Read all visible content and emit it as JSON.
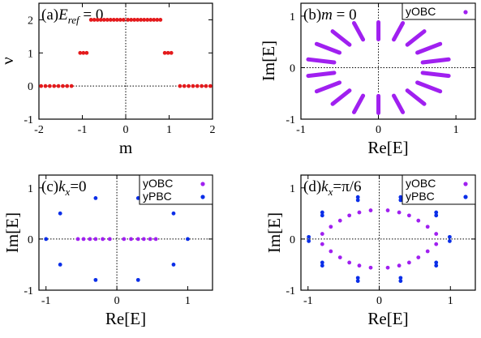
{
  "colors": {
    "red": "#e41a1c",
    "purple": "#a020f0",
    "blue": "#0a2ee8"
  },
  "chart_data": [
    {
      "panel": "(a)",
      "type": "scatter",
      "annotation": {
        "prefix": "(a)",
        "var": "E",
        "sub": "ref",
        "suffix": " = 0"
      },
      "xlabel": "m",
      "ylabel": "ν",
      "xlim": [
        -2,
        2
      ],
      "ylim": [
        -1,
        2.5
      ],
      "xticks": [
        -2,
        -1,
        0,
        1,
        2
      ],
      "yticks": [
        -1,
        0,
        1,
        2
      ],
      "series": [
        {
          "color": "red",
          "x": [
            -1.95,
            -1.85,
            -1.75,
            -1.65,
            -1.55,
            -1.45,
            -1.35,
            -1.25,
            -1.05,
            -0.975,
            -0.9,
            -0.8,
            -0.725,
            -0.65,
            -0.575,
            -0.5,
            -0.425,
            -0.35,
            -0.275,
            -0.2,
            -0.125,
            -0.05,
            0.05,
            0.125,
            0.2,
            0.275,
            0.35,
            0.425,
            0.5,
            0.575,
            0.65,
            0.725,
            0.8,
            0.9,
            0.975,
            1.05,
            1.25,
            1.35,
            1.45,
            1.55,
            1.65,
            1.75,
            1.85,
            1.95
          ],
          "y": [
            0,
            0,
            0,
            0,
            0,
            0,
            0,
            0,
            1,
            1,
            1,
            2,
            2,
            2,
            2,
            2,
            2,
            2,
            2,
            2,
            2,
            2,
            2,
            2,
            2,
            2,
            2,
            2,
            2,
            2,
            2,
            2,
            2,
            1,
            1,
            1,
            0,
            0,
            0,
            0,
            0,
            0,
            0,
            0
          ]
        }
      ]
    },
    {
      "panel": "(b)",
      "type": "scatter",
      "annotation": {
        "prefix": "(b)",
        "var": "m",
        "sub": "",
        "suffix": " = 0"
      },
      "xlabel": "Re[E]",
      "ylabel": "Im[E]",
      "xlim": [
        -1,
        1.25
      ],
      "ylim": [
        -1,
        1.25
      ],
      "xticks": [
        -1,
        0,
        1
      ],
      "yticks": [
        -1,
        0,
        1
      ],
      "legend": [
        "yOBC"
      ],
      "series": [
        {
          "name": "yOBC",
          "color": "purple",
          "style": "arcs",
          "arcs": [
            {
              "angle": 10,
              "r0": 0.58,
              "r1": 0.92
            },
            {
              "angle": 30,
              "r0": 0.58,
              "r1": 0.92
            },
            {
              "angle": 50,
              "r0": 0.58,
              "r1": 0.92
            },
            {
              "angle": 70,
              "r0": 0.58,
              "r1": 0.92
            },
            {
              "angle": 90,
              "r0": 0.55,
              "r1": 0.88
            },
            {
              "angle": 110,
              "r0": 0.58,
              "r1": 0.92
            },
            {
              "angle": 130,
              "r0": 0.58,
              "r1": 0.92
            },
            {
              "angle": 150,
              "r0": 0.58,
              "r1": 0.92
            },
            {
              "angle": 170,
              "r0": 0.58,
              "r1": 0.92
            },
            {
              "angle": 190,
              "r0": 0.58,
              "r1": 0.92
            },
            {
              "angle": 210,
              "r0": 0.58,
              "r1": 0.92
            },
            {
              "angle": 230,
              "r0": 0.58,
              "r1": 0.92
            },
            {
              "angle": 250,
              "r0": 0.58,
              "r1": 0.92
            },
            {
              "angle": 270,
              "r0": 0.55,
              "r1": 0.88
            },
            {
              "angle": 290,
              "r0": 0.58,
              "r1": 0.92
            },
            {
              "angle": 310,
              "r0": 0.58,
              "r1": 0.92
            },
            {
              "angle": 330,
              "r0": 0.58,
              "r1": 0.92
            },
            {
              "angle": 350,
              "r0": 0.58,
              "r1": 0.92
            }
          ]
        }
      ]
    },
    {
      "panel": "(c)",
      "type": "scatter",
      "annotation": {
        "prefix": "(c)",
        "var": "k",
        "sub": "x",
        "suffix": "=0"
      },
      "xlabel": "Re[E]",
      "ylabel": "Im[E]",
      "xlim": [
        -1.1,
        1.35
      ],
      "ylim": [
        -1,
        1.25
      ],
      "xticks": [
        -1,
        0,
        1
      ],
      "yticks": [
        -1,
        0,
        1
      ],
      "legend": [
        "yOBC",
        "yPBC"
      ],
      "series": [
        {
          "name": "yOBC",
          "color": "purple",
          "x": [
            -0.55,
            -0.47,
            -0.38,
            -0.3,
            -0.2,
            -0.1,
            0.1,
            0.2,
            0.3,
            0.38,
            0.47,
            0.55
          ],
          "y": [
            0,
            0,
            0,
            0,
            0,
            0,
            0,
            0,
            0,
            0,
            0,
            0
          ]
        },
        {
          "name": "yPBC",
          "color": "blue",
          "x": [
            -1.0,
            -0.8,
            -0.8,
            -0.3,
            -0.3,
            0.3,
            0.3,
            0.8,
            0.8,
            1.0
          ],
          "y": [
            0,
            0.5,
            -0.5,
            0.8,
            -0.8,
            0.8,
            -0.8,
            0.5,
            -0.5,
            0
          ]
        }
      ]
    },
    {
      "panel": "(d)",
      "type": "scatter",
      "annotation": {
        "prefix": "(d)",
        "var": "k",
        "sub": "x",
        "suffix": "=π/6"
      },
      "xlabel": "Re[E]",
      "ylabel": "Im[E]",
      "xlim": [
        -1.1,
        1.35
      ],
      "ylim": [
        -1,
        1.25
      ],
      "xticks": [
        -1,
        0,
        1
      ],
      "yticks": [
        -1,
        0,
        1
      ],
      "legend": [
        "yOBC",
        "yPBC"
      ],
      "series": [
        {
          "name": "yOBC",
          "color": "purple",
          "x": [
            -0.8,
            -0.68,
            -0.55,
            -0.42,
            -0.28,
            -0.12,
            0.12,
            0.28,
            0.42,
            0.55,
            0.68,
            0.8,
            -0.8,
            -0.68,
            -0.55,
            -0.42,
            -0.28,
            -0.12,
            0.12,
            0.28,
            0.42,
            0.55,
            0.68,
            0.8
          ],
          "y": [
            0.1,
            0.24,
            0.36,
            0.46,
            0.52,
            0.56,
            0.56,
            0.52,
            0.46,
            0.36,
            0.24,
            0.1,
            -0.1,
            -0.24,
            -0.36,
            -0.46,
            -0.52,
            -0.56,
            -0.56,
            -0.52,
            -0.46,
            -0.36,
            -0.24,
            -0.1
          ]
        },
        {
          "name": "yPBC",
          "color": "blue",
          "x": [
            -0.99,
            -0.99,
            -0.8,
            -0.8,
            -0.8,
            -0.8,
            -0.3,
            -0.3,
            -0.3,
            -0.3,
            0.3,
            0.3,
            0.3,
            0.3,
            0.8,
            0.8,
            0.8,
            0.8,
            0.99,
            0.99
          ],
          "y": [
            0.04,
            -0.04,
            0.52,
            0.46,
            -0.46,
            -0.52,
            0.82,
            0.76,
            -0.76,
            -0.82,
            0.82,
            0.76,
            -0.76,
            -0.82,
            0.52,
            0.46,
            -0.46,
            -0.52,
            0.04,
            -0.04
          ]
        }
      ]
    }
  ]
}
